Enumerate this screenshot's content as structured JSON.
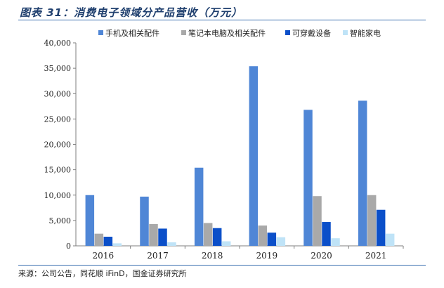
{
  "header": {
    "title": "图表 31：消费电子领域分产品营收（万元）"
  },
  "footer": {
    "source": "来源：公司公告，同花顺 iFinD，国金证券研究所"
  },
  "chart_data": {
    "type": "bar",
    "title": "图表 31：消费电子领域分产品营收（万元）",
    "xlabel": "",
    "ylabel": "",
    "categories": [
      "2016",
      "2017",
      "2018",
      "2019",
      "2020",
      "2021"
    ],
    "ylim": [
      0,
      40000
    ],
    "yticks": [
      0,
      5000,
      10000,
      15000,
      20000,
      25000,
      30000,
      35000,
      40000
    ],
    "ytick_labels": [
      "0",
      "5,000",
      "10,000",
      "15,000",
      "20,000",
      "25,000",
      "30,000",
      "35,000",
      "40,000"
    ],
    "grid": false,
    "legend_position": "top",
    "series": [
      {
        "name": "手机及相关配件",
        "color": "#4f86d6",
        "values": [
          10000,
          9700,
          15400,
          35400,
          26800,
          28600
        ]
      },
      {
        "name": "笔记本电脑及相关配件",
        "color": "#a9a9a9",
        "values": [
          2400,
          4300,
          4500,
          4000,
          9800,
          10000
        ]
      },
      {
        "name": "可穿戴设备",
        "color": "#0b4fc9",
        "values": [
          1800,
          3400,
          3500,
          2600,
          4700,
          7100
        ]
      },
      {
        "name": "智能家电",
        "color": "#bfe3f7",
        "values": [
          500,
          700,
          900,
          1700,
          1500,
          2400
        ]
      }
    ]
  }
}
